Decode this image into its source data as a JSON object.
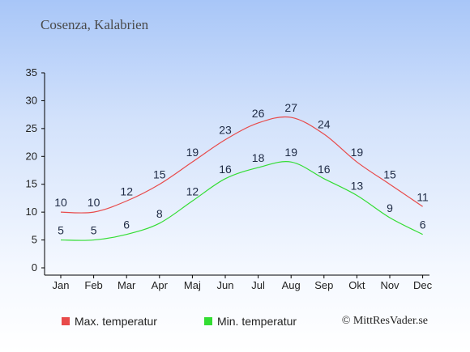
{
  "chart_data": {
    "type": "line",
    "title": "Cosenza, Kalabrien",
    "categories": [
      "Jan",
      "Feb",
      "Mar",
      "Apr",
      "Maj",
      "Jun",
      "Jul",
      "Aug",
      "Sep",
      "Okt",
      "Nov",
      "Dec"
    ],
    "series": [
      {
        "name": "Max. temperatur",
        "color": "#e84a4a",
        "values": [
          10,
          10,
          12,
          15,
          19,
          23,
          26,
          27,
          24,
          19,
          15,
          11
        ]
      },
      {
        "name": "Min. temperatur",
        "color": "#33dd33",
        "values": [
          5,
          5,
          6,
          8,
          12,
          16,
          18,
          19,
          16,
          13,
          9,
          6
        ]
      }
    ],
    "ylim": [
      0,
      35
    ],
    "yticks": [
      0,
      5,
      10,
      15,
      20,
      25,
      30,
      35
    ],
    "grid": false,
    "legend": "bottom-left"
  },
  "credit": "© MittResVader.se"
}
